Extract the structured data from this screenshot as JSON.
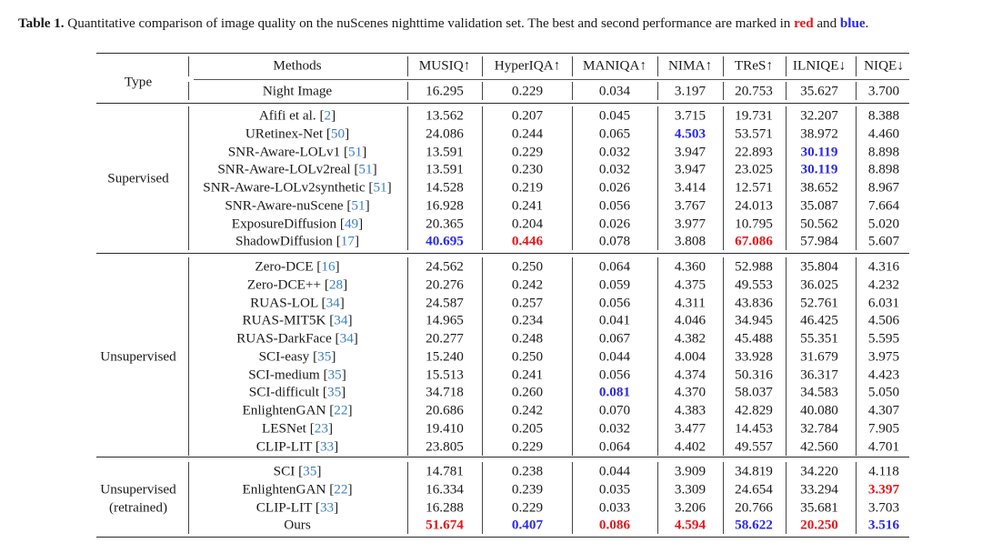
{
  "caption": {
    "label": "Table 1.",
    "text": " Quantitative comparison of image quality on the nuScenes nighttime validation set. The best and second performance are marked in ",
    "red_word": "red",
    "and_word": " and ",
    "blue_word": "blue",
    "end": "."
  },
  "colors": {
    "best": "#e3161b",
    "second": "#2a2ae6",
    "citation": "#3a7fc4"
  },
  "table": {
    "type_header": "Type",
    "methods_header": "Methods",
    "metric_headers": [
      "MUSIQ↑",
      "HyperIQA↑",
      "MANIQA↑",
      "NIMA↑",
      "TReS↑",
      "ILNIQE↓",
      "NIQE↓"
    ],
    "baseline": {
      "method": "Night Image",
      "values": [
        "16.295",
        "0.229",
        "0.034",
        "3.197",
        "20.753",
        "35.627",
        "3.700"
      ]
    },
    "groups": [
      {
        "type": "Supervised",
        "rows": [
          {
            "method": "Afifi et al.",
            "ref": "2",
            "values": [
              "13.562",
              "0.207",
              "0.045",
              "3.715",
              "19.731",
              "32.207",
              "8.388"
            ],
            "marks": [
              "",
              "",
              "",
              "",
              "",
              "",
              ""
            ]
          },
          {
            "method": "URetinex-Net",
            "ref": "50",
            "values": [
              "24.086",
              "0.244",
              "0.065",
              "4.503",
              "53.571",
              "38.972",
              "4.460"
            ],
            "marks": [
              "",
              "",
              "",
              "blue",
              "",
              "",
              ""
            ]
          },
          {
            "method": "SNR-Aware-LOLv1",
            "ref": "51",
            "values": [
              "13.591",
              "0.229",
              "0.032",
              "3.947",
              "22.893",
              "30.119",
              "8.898"
            ],
            "marks": [
              "",
              "",
              "",
              "",
              "",
              "blue",
              ""
            ]
          },
          {
            "method": "SNR-Aware-LOLv2real",
            "ref": "51",
            "values": [
              "13.591",
              "0.230",
              "0.032",
              "3.947",
              "23.025",
              "30.119",
              "8.898"
            ],
            "marks": [
              "",
              "",
              "",
              "",
              "",
              "blue",
              ""
            ]
          },
          {
            "method": "SNR-Aware-LOLv2synthetic",
            "ref": "51",
            "values": [
              "14.528",
              "0.219",
              "0.026",
              "3.414",
              "12.571",
              "38.652",
              "8.967"
            ],
            "marks": [
              "",
              "",
              "",
              "",
              "",
              "",
              ""
            ]
          },
          {
            "method": "SNR-Aware-nuScene",
            "ref": "51",
            "values": [
              "16.928",
              "0.241",
              "0.056",
              "3.767",
              "24.013",
              "35.087",
              "7.664"
            ],
            "marks": [
              "",
              "",
              "",
              "",
              "",
              "",
              ""
            ]
          },
          {
            "method": "ExposureDiffusion",
            "ref": "49",
            "values": [
              "20.365",
              "0.204",
              "0.026",
              "3.977",
              "10.795",
              "50.562",
              "5.020"
            ],
            "marks": [
              "",
              "",
              "",
              "",
              "",
              "",
              ""
            ]
          },
          {
            "method": "ShadowDiffusion",
            "ref": "17",
            "values": [
              "40.695",
              "0.446",
              "0.078",
              "3.808",
              "67.086",
              "57.984",
              "5.607"
            ],
            "marks": [
              "blue",
              "red",
              "",
              "",
              "red",
              "",
              ""
            ]
          }
        ]
      },
      {
        "type": "Unsupervised",
        "rows": [
          {
            "method": "Zero-DCE",
            "ref": "16",
            "values": [
              "24.562",
              "0.250",
              "0.064",
              "4.360",
              "52.988",
              "35.804",
              "4.316"
            ],
            "marks": [
              "",
              "",
              "",
              "",
              "",
              "",
              ""
            ]
          },
          {
            "method": "Zero-DCE++",
            "ref": "28",
            "values": [
              "20.276",
              "0.242",
              "0.059",
              "4.375",
              "49.553",
              "36.025",
              "4.232"
            ],
            "marks": [
              "",
              "",
              "",
              "",
              "",
              "",
              ""
            ]
          },
          {
            "method": "RUAS-LOL",
            "ref": "34",
            "values": [
              "24.587",
              "0.257",
              "0.056",
              "4.311",
              "43.836",
              "52.761",
              "6.031"
            ],
            "marks": [
              "",
              "",
              "",
              "",
              "",
              "",
              ""
            ]
          },
          {
            "method": "RUAS-MIT5K",
            "ref": "34",
            "values": [
              "14.965",
              "0.234",
              "0.041",
              "4.046",
              "34.945",
              "46.425",
              "4.506"
            ],
            "marks": [
              "",
              "",
              "",
              "",
              "",
              "",
              ""
            ]
          },
          {
            "method": "RUAS-DarkFace",
            "ref": "34",
            "values": [
              "20.277",
              "0.248",
              "0.067",
              "4.382",
              "45.488",
              "55.351",
              "5.595"
            ],
            "marks": [
              "",
              "",
              "",
              "",
              "",
              "",
              ""
            ]
          },
          {
            "method": "SCI-easy",
            "ref": "35",
            "values": [
              "15.240",
              "0.250",
              "0.044",
              "4.004",
              "33.928",
              "31.679",
              "3.975"
            ],
            "marks": [
              "",
              "",
              "",
              "",
              "",
              "",
              ""
            ]
          },
          {
            "method": "SCI-medium",
            "ref": "35",
            "values": [
              "15.513",
              "0.241",
              "0.056",
              "4.374",
              "50.316",
              "36.317",
              "4.423"
            ],
            "marks": [
              "",
              "",
              "",
              "",
              "",
              "",
              ""
            ]
          },
          {
            "method": "SCI-difficult",
            "ref": "35",
            "values": [
              "34.718",
              "0.260",
              "0.081",
              "4.370",
              "58.037",
              "34.583",
              "5.050"
            ],
            "marks": [
              "",
              "",
              "blue",
              "",
              "",
              "",
              ""
            ]
          },
          {
            "method": "EnlightenGAN",
            "ref": "22",
            "values": [
              "20.686",
              "0.242",
              "0.070",
              "4.383",
              "42.829",
              "40.080",
              "4.307"
            ],
            "marks": [
              "",
              "",
              "",
              "",
              "",
              "",
              ""
            ]
          },
          {
            "method": "LESNet",
            "ref": "23",
            "values": [
              "19.410",
              "0.205",
              "0.032",
              "3.477",
              "14.453",
              "32.784",
              "7.905"
            ],
            "marks": [
              "",
              "",
              "",
              "",
              "",
              "",
              ""
            ]
          },
          {
            "method": "CLIP-LIT",
            "ref": "33",
            "values": [
              "23.805",
              "0.229",
              "0.064",
              "4.402",
              "49.557",
              "42.560",
              "4.701"
            ],
            "marks": [
              "",
              "",
              "",
              "",
              "",
              "",
              ""
            ]
          }
        ]
      },
      {
        "type": "Unsupervised",
        "type_line2": "(retrained)",
        "rows": [
          {
            "method": "SCI",
            "ref": "35",
            "values": [
              "14.781",
              "0.238",
              "0.044",
              "3.909",
              "34.819",
              "34.220",
              "4.118"
            ],
            "marks": [
              "",
              "",
              "",
              "",
              "",
              "",
              ""
            ]
          },
          {
            "method": "EnlightenGAN",
            "ref": "22",
            "values": [
              "16.334",
              "0.239",
              "0.035",
              "3.309",
              "24.654",
              "33.294",
              "3.397"
            ],
            "marks": [
              "",
              "",
              "",
              "",
              "",
              "",
              "red"
            ]
          },
          {
            "method": "CLIP-LIT",
            "ref": "33",
            "values": [
              "16.288",
              "0.229",
              "0.033",
              "3.206",
              "20.766",
              "35.681",
              "3.703"
            ],
            "marks": [
              "",
              "",
              "",
              "",
              "",
              "",
              ""
            ]
          },
          {
            "method": "Ours",
            "ref": "",
            "values": [
              "51.674",
              "0.407",
              "0.086",
              "4.594",
              "58.622",
              "20.250",
              "3.516"
            ],
            "marks": [
              "red",
              "blue",
              "red",
              "red",
              "blue",
              "red",
              "blue"
            ]
          }
        ]
      }
    ]
  }
}
